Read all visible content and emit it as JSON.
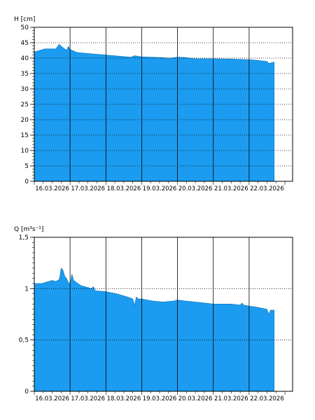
{
  "chart_data": [
    {
      "type": "area",
      "ylabel": "H [cm]",
      "ylim": [
        0,
        50
      ],
      "yticks": [
        "0",
        "5",
        "10",
        "15",
        "20",
        "25",
        "30",
        "35",
        "40",
        "45",
        "50"
      ],
      "ytick_values": [
        0,
        5,
        10,
        15,
        20,
        25,
        30,
        35,
        40,
        45,
        50
      ],
      "xlim": [
        0,
        7
      ],
      "xticks": [
        "16.03.2026",
        "17.03.2026",
        "18.03.2026",
        "19.03.2026",
        "20.03.2026",
        "21.03.2026",
        "22.03.2026"
      ],
      "fill_color": "#1c9cf0",
      "grid": "dotted horizontal, solid vertical at day boundaries",
      "x_days": [
        0,
        0.3,
        0.6,
        0.7,
        0.75,
        0.85,
        0.9,
        0.95,
        1.0,
        1.2,
        1.5,
        1.7,
        2.0,
        2.3,
        2.7,
        2.8,
        3.0,
        3.5,
        3.8,
        4.0,
        4.2,
        4.5,
        5.0,
        5.5,
        6.0,
        6.2,
        6.5,
        6.55,
        6.7
      ],
      "values": [
        42,
        43,
        43,
        44.5,
        43.8,
        43,
        42.5,
        43.8,
        42.8,
        41.8,
        41.5,
        41.3,
        41,
        40.7,
        40.3,
        40.8,
        40.4,
        40.2,
        40,
        40.3,
        40.2,
        39.8,
        39.8,
        39.7,
        39.5,
        39.3,
        38.9,
        38.3,
        38.7
      ]
    },
    {
      "type": "area",
      "ylabel": "Q [m³s⁻¹]",
      "ylim": [
        0,
        1.5
      ],
      "yticks": [
        "0",
        "0,5",
        "1",
        "1,5"
      ],
      "ytick_values": [
        0,
        0.5,
        1,
        1.5
      ],
      "xlim": [
        0,
        7
      ],
      "xticks": [
        "16.03.2026",
        "17.03.2026",
        "18.03.2026",
        "19.03.2026",
        "20.03.2026",
        "21.03.2026",
        "22.03.2026"
      ],
      "fill_color": "#1c9cf0",
      "grid": "dotted horizontal, solid vertical at day boundaries",
      "x_days": [
        0,
        0.2,
        0.5,
        0.6,
        0.7,
        0.75,
        0.8,
        0.85,
        0.9,
        0.95,
        1.0,
        1.05,
        1.1,
        1.3,
        1.6,
        1.65,
        1.7,
        2.0,
        2.3,
        2.6,
        2.75,
        2.8,
        2.85,
        2.9,
        3.0,
        3.3,
        3.6,
        3.9,
        4.0,
        4.2,
        4.5,
        5.0,
        5.5,
        5.75,
        5.8,
        5.85,
        6.0,
        6.2,
        6.5,
        6.55,
        6.6,
        6.7
      ],
      "values": [
        1.05,
        1.05,
        1.08,
        1.07,
        1.09,
        1.2,
        1.18,
        1.12,
        1.1,
        1.06,
        1.05,
        1.14,
        1.08,
        1.03,
        1.0,
        1.02,
        0.98,
        0.97,
        0.95,
        0.92,
        0.9,
        0.84,
        0.92,
        0.9,
        0.9,
        0.88,
        0.87,
        0.88,
        0.89,
        0.88,
        0.87,
        0.85,
        0.85,
        0.84,
        0.86,
        0.84,
        0.83,
        0.82,
        0.8,
        0.75,
        0.79,
        0.79
      ]
    }
  ]
}
